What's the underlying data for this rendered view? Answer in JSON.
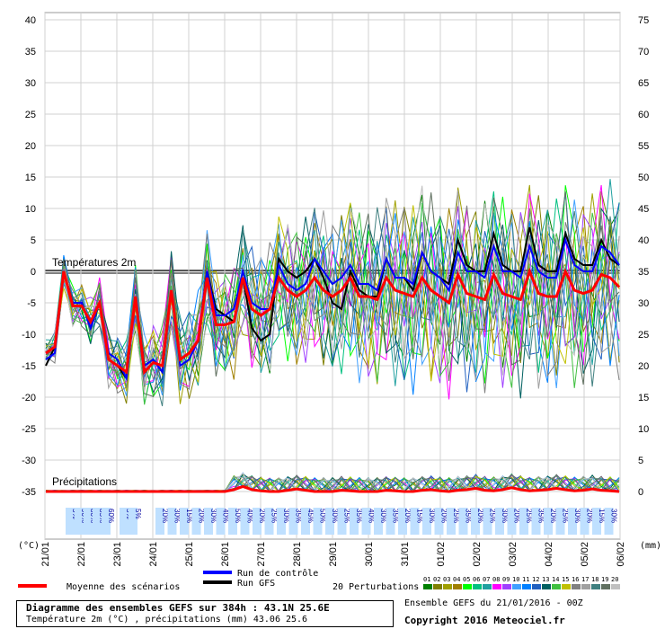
{
  "chart_data": {
    "type": "line",
    "title": "Diagramme des ensembles GEFS sur 384h : 43.1N 25.6E",
    "subtitle": "Température 2m (°C) , précipitations (mm) 43.06 25.6",
    "y_left": {
      "label": "(°C)",
      "ticks": [
        40,
        35,
        30,
        25,
        20,
        15,
        10,
        5,
        0,
        -5,
        -10,
        -15,
        -20,
        -25,
        -30,
        -35
      ],
      "range": [
        -35,
        40
      ]
    },
    "y_right": {
      "label": "(mm)",
      "ticks": [
        75,
        70,
        65,
        60,
        55,
        50,
        45,
        40,
        35,
        30,
        25,
        20,
        15,
        10,
        5,
        0
      ],
      "range": [
        0,
        75
      ]
    },
    "x_labels": [
      "21/01",
      "22/01",
      "23/01",
      "24/01",
      "25/01",
      "26/01",
      "27/01",
      "28/01",
      "29/01",
      "30/01",
      "31/01",
      "01/02",
      "02/02",
      "03/02",
      "04/02",
      "05/02",
      "06/02"
    ],
    "temp_section_label": "Températures 2m",
    "precip_section_label": "Précipitations",
    "snow_percent_labels": [
      "5%",
      "90%",
      "80%",
      "85%",
      "60%",
      "5%",
      "5%",
      "20%",
      "30%",
      "15%",
      "20%",
      "30%",
      "40%",
      "50%",
      "40%",
      "20%",
      "25%",
      "30%",
      "35%",
      "45%",
      "50%",
      "30%",
      "25%",
      "35%",
      "40%",
      "30%",
      "35%",
      "20%",
      "15%",
      "30%",
      "20%",
      "25%",
      "35%",
      "20%",
      "25%",
      "30%",
      "20%",
      "25%",
      "35%",
      "20%",
      "25%",
      "30%",
      "20%",
      "15%",
      "30%"
    ],
    "mean": {
      "name": "Moyenne des scénarios",
      "color": "#ff0000",
      "values": [
        -13,
        -12,
        0,
        -5.5,
        -5.5,
        -8,
        -5,
        -14,
        -15,
        -16,
        -4,
        -16,
        -14.5,
        -15,
        -3,
        -14,
        -13,
        -11,
        -1,
        -8.5,
        -8.5,
        -8,
        -1,
        -6,
        -7,
        -6,
        -1,
        -3,
        -4,
        -3,
        -1,
        -3,
        -4,
        -3,
        -1,
        -4,
        -4,
        -4.5,
        -1,
        -3,
        -3.5,
        -4,
        -1,
        -3,
        -4,
        -5,
        -0.5,
        -3.5,
        -4,
        -4.5,
        -0.5,
        -3.5,
        -4,
        -4.5,
        0,
        -3.5,
        -4,
        -4,
        0,
        -3,
        -3.5,
        -3,
        -0.5,
        -1,
        -2.5
      ]
    },
    "control": {
      "name": "Run de contrôle",
      "color": "#0000ff",
      "values": [
        -14,
        -13,
        0,
        -5,
        -5,
        -9,
        -5,
        -13,
        -14,
        -17,
        -4,
        -15,
        -14,
        -16,
        -3,
        -15,
        -14,
        -11,
        0,
        -7,
        -7,
        -6,
        0,
        -5,
        -6,
        -6,
        1,
        -2,
        -3,
        -2,
        2,
        0,
        -2,
        -1,
        1,
        -2,
        -2,
        -3,
        2,
        -1,
        -1,
        -2,
        3,
        0,
        -1,
        -3,
        3,
        0,
        0,
        -1,
        4,
        0,
        0,
        -1,
        4,
        0,
        -1,
        -1,
        5,
        1,
        0,
        0,
        4,
        3,
        1
      ]
    },
    "gfs": {
      "name": "Run GFS",
      "color": "#000000",
      "values": [
        -15,
        -12,
        0,
        -5,
        -5,
        -9,
        -5,
        -14,
        -15,
        -17,
        -4,
        -15,
        -14,
        -16,
        -3,
        -14,
        -13,
        -11,
        0,
        -6,
        -7,
        -8,
        -1,
        -9,
        -11,
        -10,
        2,
        0,
        -1,
        0,
        2,
        -1,
        -5,
        -6,
        0,
        -3,
        -4,
        -4,
        2,
        -1,
        -1,
        -3,
        3,
        0,
        -1,
        -2,
        5,
        1,
        0,
        0,
        6,
        1,
        0,
        0,
        7,
        1,
        0,
        0,
        6,
        2,
        1,
        1,
        5,
        2,
        1
      ]
    },
    "precip_mean": {
      "color": "#ff0000",
      "values": [
        0,
        0,
        0,
        0,
        0,
        0,
        0,
        0,
        0,
        0,
        0,
        0,
        0,
        0,
        0,
        0,
        0,
        0,
        0,
        0,
        0,
        0.3,
        0.8,
        0.3,
        0.1,
        0,
        0,
        0.2,
        0.4,
        0.2,
        0,
        0,
        0,
        0.2,
        0.1,
        0,
        0,
        0,
        0.2,
        0.1,
        0,
        0,
        0.2,
        0.3,
        0.1,
        0,
        0.2,
        0.3,
        0.5,
        0.2,
        0.1,
        0.3,
        0.6,
        0.3,
        0.1,
        0.2,
        0.3,
        0.5,
        0.3,
        0.1,
        0.2,
        0.4,
        0.2,
        0.1,
        0
      ]
    },
    "perturbations_label": "20 Perturbations",
    "perturbation_ids": [
      "01",
      "02",
      "03",
      "04",
      "05",
      "06",
      "07",
      "08",
      "09",
      "10",
      "11",
      "12",
      "13",
      "14",
      "15",
      "16",
      "17",
      "18",
      "19",
      "20"
    ],
    "perturbation_colors": [
      "#008000",
      "#808000",
      "#a0a000",
      "#a08000",
      "#00ff00",
      "#00c080",
      "#20a0a0",
      "#ff00ff",
      "#a040ff",
      "#40a0ff",
      "#0080ff",
      "#2060c0",
      "#006060",
      "#40c040",
      "#c0c000",
      "#808080",
      "#a0a0a0",
      "#408080",
      "#607060",
      "#c0c0c0"
    ]
  },
  "footer": {
    "ensemble_text": "Ensemble GEFS du 21/01/2016 - 00Z",
    "copyright": "Copyright 2016 Meteociel.fr"
  }
}
